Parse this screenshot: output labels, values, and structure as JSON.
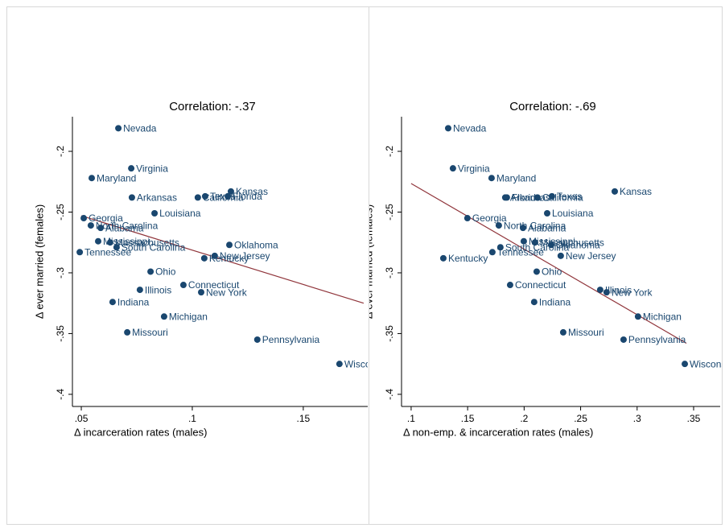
{
  "chart_data": [
    {
      "type": "scatter",
      "title": "Correlation: -.37",
      "xlabel": "Δ  incarceration rates (males)",
      "ylabel": "Δ ever married (females)",
      "point_labels": [
        "Nevada",
        "Virginia",
        "Maryland",
        "Arkansas",
        "California",
        "Texas",
        "Florida",
        "Kansas",
        "Louisiana",
        "Georgia",
        "North Carolina",
        "Alabama",
        "Mississippi",
        "Massachusetts",
        "South Carolina",
        "Tennessee",
        "Oklahoma",
        "New Jersey",
        "Kentucky",
        "Ohio",
        "Connecticut",
        "Illinois",
        "New York",
        "Indiana",
        "Michigan",
        "Missouri",
        "Pennsylvania",
        "Wisconsin"
      ],
      "x": [
        0.0667,
        0.0725,
        0.0547,
        0.0728,
        0.1025,
        0.1058,
        0.116,
        0.1174,
        0.083,
        0.0511,
        0.0543,
        0.0587,
        0.0576,
        0.063,
        0.0659,
        0.0493,
        0.1167,
        0.1101,
        0.1054,
        0.0812,
        0.096,
        0.0764,
        0.104,
        0.0641,
        0.0873,
        0.0707,
        0.1293,
        0.1663
      ],
      "values": [
        -0.181,
        -0.214,
        -0.222,
        -0.238,
        -0.238,
        -0.237,
        -0.237,
        -0.233,
        -0.251,
        -0.255,
        -0.261,
        -0.263,
        -0.274,
        -0.275,
        -0.279,
        -0.283,
        -0.277,
        -0.286,
        -0.288,
        -0.299,
        -0.31,
        -0.314,
        -0.316,
        -0.324,
        -0.336,
        -0.349,
        -0.355,
        -0.375
      ],
      "color": "#1a476f",
      "fit": {
        "x": [
          0.05,
          0.1772
        ],
        "y": [
          -0.253,
          -0.325
        ],
        "color": "#90353b"
      },
      "xlim": [
        0.046,
        0.1794
      ],
      "ylim": [
        -0.41,
        -0.1715
      ],
      "xticks": [
        {
          "value": 0.05,
          "label": ".05"
        },
        {
          "value": 0.1,
          "label": ".1"
        },
        {
          "value": 0.15,
          "label": ".15"
        }
      ],
      "yticks": [
        {
          "value": -0.4,
          "label": "-.4"
        },
        {
          "value": -0.35,
          "label": "-.35"
        },
        {
          "value": -0.3,
          "label": "-.3"
        },
        {
          "value": -0.25,
          "label": "-.25"
        },
        {
          "value": -0.2,
          "label": "-.2"
        }
      ]
    },
    {
      "type": "scatter",
      "title": "Correlation: -.69",
      "xlabel": "Δ  non-emp. & incarceration rates (males)",
      "ylabel": "Δ ever married (females)",
      "point_labels": [
        "Nevada",
        "Virginia",
        "Maryland",
        "Arkansas",
        "Florida",
        "California",
        "Texas",
        "Kansas",
        "Louisiana",
        "Georgia",
        "North Carolina",
        "Alabama",
        "Mississippi",
        "Massachusetts",
        "South Carolina",
        "Tennessee",
        "Oklahoma",
        "New Jersey",
        "Kentucky",
        "Ohio",
        "Connecticut",
        "Illinois",
        "New York",
        "Indiana",
        "Michigan",
        "Missouri",
        "Pennsylvania",
        "Wisconsin"
      ],
      "x": [
        0.1328,
        0.137,
        0.1712,
        0.1833,
        0.1847,
        0.2118,
        0.2246,
        0.2802,
        0.2204,
        0.1498,
        0.1776,
        0.199,
        0.1997,
        0.2096,
        0.179,
        0.1719,
        0.2239,
        0.2324,
        0.1285,
        0.2111,
        0.1876,
        0.2673,
        0.273,
        0.2089,
        0.3008,
        0.2346,
        0.288,
        0.3422
      ],
      "values": [
        -0.181,
        -0.214,
        -0.222,
        -0.238,
        -0.238,
        -0.238,
        -0.237,
        -0.233,
        -0.251,
        -0.255,
        -0.261,
        -0.263,
        -0.274,
        -0.275,
        -0.279,
        -0.283,
        -0.277,
        -0.286,
        -0.288,
        -0.299,
        -0.31,
        -0.314,
        -0.316,
        -0.324,
        -0.336,
        -0.349,
        -0.355,
        -0.375
      ],
      "color": "#1a476f",
      "fit": {
        "x": [
          0.1,
          0.3436
        ],
        "y": [
          -0.2265,
          -0.358
        ],
        "color": "#90353b"
      },
      "xlim": [
        0.0915,
        0.3735
      ],
      "ylim": [
        -0.41,
        -0.1715
      ],
      "xticks": [
        {
          "value": 0.1,
          "label": ".1"
        },
        {
          "value": 0.15,
          "label": ".15"
        },
        {
          "value": 0.2,
          "label": ".2"
        },
        {
          "value": 0.25,
          "label": ".25"
        },
        {
          "value": 0.3,
          "label": ".3"
        },
        {
          "value": 0.35,
          "label": ".35"
        }
      ],
      "yticks": [
        {
          "value": -0.4,
          "label": "-.4"
        },
        {
          "value": -0.35,
          "label": "-.35"
        },
        {
          "value": -0.3,
          "label": "-.3"
        },
        {
          "value": -0.25,
          "label": "-.25"
        },
        {
          "value": -0.2,
          "label": "-.2"
        }
      ]
    }
  ]
}
